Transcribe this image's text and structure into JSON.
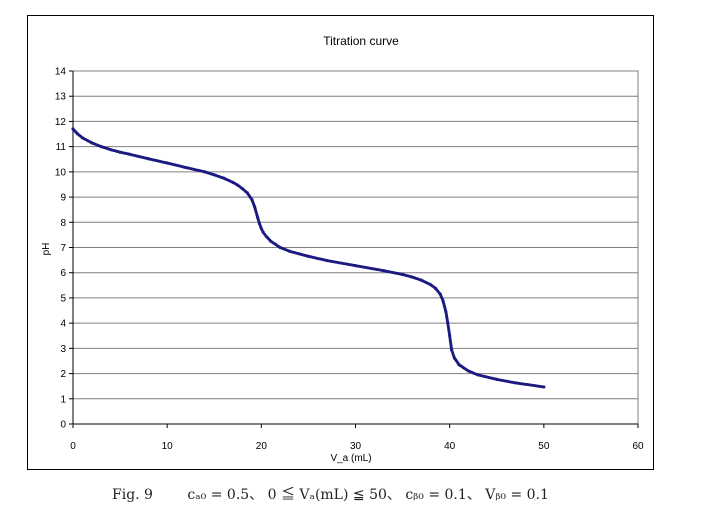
{
  "chart_data": {
    "type": "scatter",
    "title": "Titration curve",
    "xlabel": "V_a (mL)",
    "ylabel": "pH",
    "xlim": [
      0,
      60
    ],
    "ylim": [
      0,
      14
    ],
    "xticks": [
      "0",
      "10",
      "20",
      "30",
      "40",
      "50",
      "60"
    ],
    "yticks": [
      "0",
      "1",
      "2",
      "3",
      "4",
      "5",
      "6",
      "7",
      "8",
      "9",
      "10",
      "11",
      "12",
      "13",
      "14"
    ],
    "grid": "horizontal",
    "marker_color": "#1a1a80",
    "series": [
      {
        "x": [
          0,
          0.5,
          1,
          2,
          3,
          4,
          5,
          6,
          8,
          10,
          12,
          14,
          15,
          16,
          17,
          17.5,
          18,
          18.5,
          19,
          19.3,
          19.6,
          19.8,
          20,
          20.2,
          20.5,
          21,
          22,
          23,
          25,
          27,
          30,
          33,
          35,
          36,
          37,
          38,
          38.5,
          39,
          39.3,
          39.6,
          39.8,
          40,
          40.2,
          40.5,
          41,
          42,
          43,
          45,
          47,
          50
        ],
        "y": [
          11.7,
          11.5,
          11.35,
          11.15,
          11.0,
          10.88,
          10.78,
          10.7,
          10.52,
          10.35,
          10.17,
          10.0,
          9.88,
          9.75,
          9.58,
          9.47,
          9.33,
          9.17,
          8.9,
          8.6,
          8.2,
          7.95,
          7.75,
          7.6,
          7.45,
          7.25,
          7.0,
          6.85,
          6.65,
          6.48,
          6.28,
          6.08,
          5.93,
          5.83,
          5.7,
          5.52,
          5.38,
          5.15,
          4.88,
          4.45,
          4.0,
          3.5,
          2.95,
          2.62,
          2.35,
          2.1,
          1.95,
          1.77,
          1.63,
          1.47
        ]
      }
    ]
  },
  "caption": {
    "fig_label": "Fig. 9",
    "formula": "cₐ₀ = 0.5、 0 ≦ Vₐ(mL) ≦ 50、 cᵦ₀ = 0.1、 Vᵦ₀ = 0.1"
  }
}
